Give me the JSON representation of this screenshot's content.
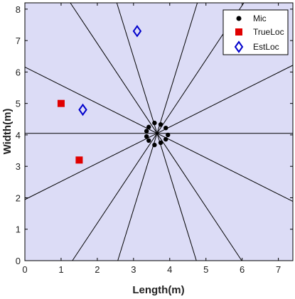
{
  "chart_data": {
    "type": "scatter",
    "xlabel": "Length(m)",
    "ylabel": "Width(m)",
    "xlim": [
      0,
      7.4
    ],
    "ylim": [
      0,
      8.2
    ],
    "xticks": [
      "0",
      "1",
      "2",
      "3",
      "4",
      "5",
      "6",
      "7"
    ],
    "yticks": [
      "0",
      "1",
      "2",
      "3",
      "4",
      "5",
      "6",
      "7",
      "8"
    ],
    "grid": false,
    "background_color": "#dcdcf6",
    "legend_position": "top-right",
    "legend": [
      "Mic",
      "TrueLoc",
      "EstLoc"
    ],
    "series": [
      {
        "name": "Mic",
        "marker": "circle",
        "color": "#000000",
        "points": [
          [
            3.95,
            4.0
          ],
          [
            3.89,
            4.22
          ],
          [
            3.75,
            4.33
          ],
          [
            3.58,
            4.38
          ],
          [
            3.42,
            4.25
          ],
          [
            3.36,
            4.12
          ],
          [
            3.36,
            3.95
          ],
          [
            3.42,
            3.82
          ],
          [
            3.58,
            3.68
          ],
          [
            3.75,
            3.75
          ],
          [
            3.89,
            3.86
          ]
        ]
      },
      {
        "name": "TrueLoc",
        "marker": "square",
        "color": "#e00000",
        "points": [
          [
            1.0,
            5.0
          ],
          [
            1.5,
            3.2
          ]
        ]
      },
      {
        "name": "EstLoc",
        "marker": "diamond",
        "color": "#0000cc",
        "points": [
          [
            1.6,
            4.8
          ],
          [
            3.1,
            7.3
          ]
        ]
      }
    ],
    "reference_lines": {
      "center": [
        3.65,
        4.05
      ],
      "angles_deg": [
        0,
        30,
        60,
        75,
        105,
        120,
        150
      ],
      "color": "#000000"
    }
  }
}
